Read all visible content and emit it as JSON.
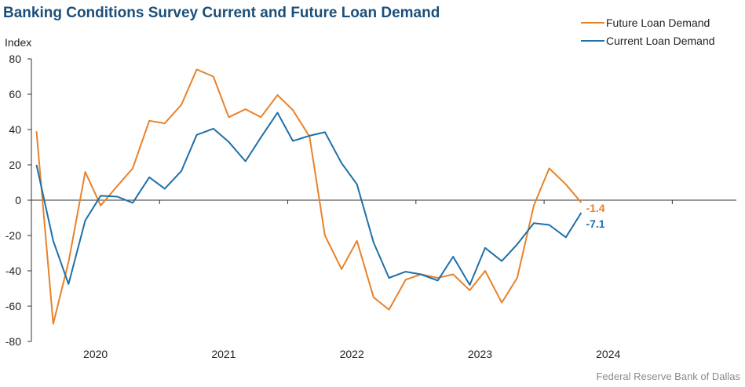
{
  "title": "Banking Conditions Survey Current and Future Loan Demand",
  "source": "Federal Reserve Bank of Dallas",
  "chart_data": {
    "type": "line",
    "title": "Banking Conditions Survey Current and Future Loan Demand",
    "ylabel": "Index",
    "xlabel": "",
    "ylim": [
      -80,
      80
    ],
    "yticks": [
      "80",
      "60",
      "40",
      "20",
      "0",
      "-20",
      "-40",
      "-60",
      "-80"
    ],
    "ytick_values": [
      80,
      60,
      40,
      20,
      0,
      -20,
      -40,
      -60,
      -80
    ],
    "xtick_labels": [
      "2020",
      "2021",
      "2022",
      "2023",
      "2024"
    ],
    "xtick_years": [
      2020,
      2021,
      2022,
      2023,
      2024
    ],
    "xlim": [
      2019.5,
      2025.0
    ],
    "grid": false,
    "legend_position": "top-right",
    "colors": {
      "future": "#e8822a",
      "current": "#1f6fa8",
      "axis": "#333333",
      "title": "#1b4f7a"
    },
    "series": [
      {
        "name": "Future Loan Demand",
        "color": "#e8822a",
        "end_label": "-1.4",
        "x": [
          2019.54,
          2019.67,
          2019.79,
          2019.92,
          2020.04,
          2020.17,
          2020.29,
          2020.42,
          2020.54,
          2020.67,
          2020.79,
          2020.92,
          2021.04,
          2021.17,
          2021.29,
          2021.42,
          2021.54,
          2021.67,
          2021.79,
          2021.92,
          2022.04,
          2022.17,
          2022.29,
          2022.42,
          2022.54,
          2022.67,
          2022.79,
          2022.92,
          2023.04,
          2023.17,
          2023.29,
          2023.42,
          2023.54,
          2023.67,
          2023.79
        ],
        "values": [
          39,
          -70,
          -35,
          16,
          -3,
          8,
          18,
          45,
          43.5,
          54,
          74,
          70,
          47,
          51.5,
          47,
          59.5,
          51,
          36,
          -20,
          -39,
          -23,
          -55,
          -62,
          -45,
          -42,
          -44,
          -42,
          -51,
          -40,
          -58,
          -44,
          -3,
          18,
          9,
          -1.4
        ]
      },
      {
        "name": "Current Loan Demand",
        "color": "#1f6fa8",
        "end_label": "-7.1",
        "x": [
          2019.54,
          2019.67,
          2019.79,
          2019.92,
          2020.04,
          2020.17,
          2020.29,
          2020.42,
          2020.54,
          2020.67,
          2020.79,
          2020.92,
          2021.04,
          2021.17,
          2021.29,
          2021.42,
          2021.54,
          2021.67,
          2021.79,
          2021.92,
          2022.04,
          2022.17,
          2022.29,
          2022.42,
          2022.54,
          2022.67,
          2022.79,
          2022.92,
          2023.04,
          2023.17,
          2023.29,
          2023.42,
          2023.54,
          2023.67,
          2023.79
        ],
        "values": [
          20,
          -23,
          -47.5,
          -11.5,
          2.5,
          2,
          -1.5,
          13,
          6.5,
          16.5,
          37,
          40.5,
          33,
          22,
          35.5,
          49.5,
          33.5,
          36.5,
          38.5,
          21,
          9,
          -24,
          -44,
          -40.5,
          -42,
          -45.5,
          -32,
          -48,
          -27,
          -34.5,
          -25,
          -13,
          -14,
          -21,
          -7.1
        ]
      }
    ]
  }
}
